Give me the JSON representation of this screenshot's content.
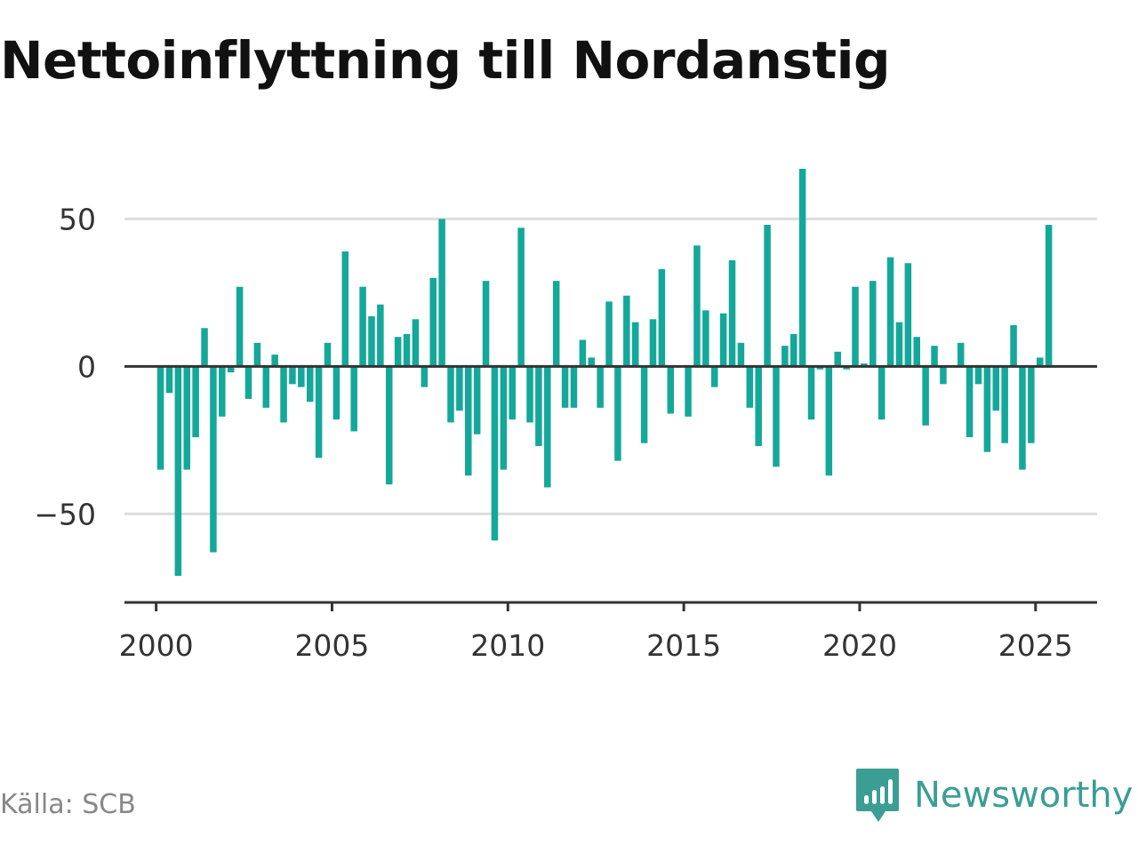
{
  "title": "Nettoinflyttning till Nordanstig",
  "source": "Källa: SCB",
  "brand": "Newsworthy",
  "colors": {
    "bar": "#14a89b",
    "brand": "#3a9e94",
    "grid": "#dddddd",
    "zero": "#333333",
    "axis": "#333333"
  },
  "chart_data": {
    "type": "bar",
    "ylim": [
      -80,
      70
    ],
    "xlim": [
      1999.1,
      2026.8
    ],
    "yticks": [
      50,
      0,
      -50
    ],
    "ytick_labels": [
      "50",
      "0",
      "−50"
    ],
    "xticks": [
      2000,
      2005,
      2010,
      2015,
      2020,
      2025
    ],
    "xtick_labels": [
      "2000",
      "2005",
      "2010",
      "2015",
      "2020",
      "2025"
    ],
    "grid": true,
    "x": [
      2000.125,
      2000.375,
      2000.625,
      2000.875,
      2001.125,
      2001.375,
      2001.625,
      2001.875,
      2002.125,
      2002.375,
      2002.625,
      2002.875,
      2003.125,
      2003.375,
      2003.625,
      2003.875,
      2004.125,
      2004.375,
      2004.625,
      2004.875,
      2005.125,
      2005.375,
      2005.625,
      2005.875,
      2006.125,
      2006.375,
      2006.625,
      2006.875,
      2007.125,
      2007.375,
      2007.625,
      2007.875,
      2008.125,
      2008.375,
      2008.625,
      2008.875,
      2009.125,
      2009.375,
      2009.625,
      2009.875,
      2010.125,
      2010.375,
      2010.625,
      2010.875,
      2011.125,
      2011.375,
      2011.625,
      2011.875,
      2012.125,
      2012.375,
      2012.625,
      2012.875,
      2013.125,
      2013.375,
      2013.625,
      2013.875,
      2014.125,
      2014.375,
      2014.625,
      2014.875,
      2015.125,
      2015.375,
      2015.625,
      2015.875,
      2016.125,
      2016.375,
      2016.625,
      2016.875,
      2017.125,
      2017.375,
      2017.625,
      2017.875,
      2018.125,
      2018.375,
      2018.625,
      2018.875,
      2019.125,
      2019.375,
      2019.625,
      2019.875,
      2020.125,
      2020.375,
      2020.625,
      2020.875,
      2021.125,
      2021.375,
      2021.625,
      2021.875,
      2022.125,
      2022.375,
      2022.625,
      2022.875,
      2023.125,
      2023.375,
      2023.625,
      2023.875,
      2024.125,
      2024.375,
      2024.625,
      2024.875,
      2025.125,
      2025.375
    ],
    "values": [
      -35,
      -9,
      -71,
      -35,
      -24,
      13,
      -63,
      -17,
      -2,
      27,
      -11,
      8,
      -14,
      4,
      -19,
      -6,
      -7,
      -12,
      -31,
      8,
      -18,
      39,
      -22,
      27,
      17,
      21,
      -40,
      10,
      11,
      16,
      -7,
      30,
      50,
      -19,
      -15,
      -37,
      -23,
      29,
      -59,
      -35,
      -18,
      47,
      -19,
      -27,
      -41,
      29,
      -14,
      -14,
      9,
      3,
      -14,
      22,
      -32,
      24,
      15,
      -26,
      16,
      33,
      -16,
      0,
      -17,
      41,
      19,
      -7,
      18,
      36,
      8,
      -14,
      -27,
      48,
      -34,
      7,
      11,
      67,
      -18,
      -1,
      -37,
      5,
      -1,
      27,
      1,
      29,
      -18,
      37,
      15,
      35,
      10,
      -20,
      7,
      -6,
      0,
      8,
      -24,
      -6,
      -29,
      -15,
      -26,
      14,
      -35,
      -26,
      3,
      48
    ]
  }
}
